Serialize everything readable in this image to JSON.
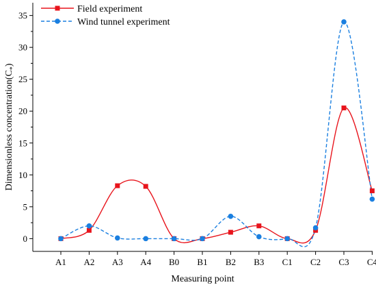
{
  "chart_data": {
    "type": "line",
    "xlabel": "Measuring point",
    "ylabel": "Dimensionless concentration(C*)",
    "ylabel_main": "Dimensionless concentration(C",
    "ylabel_sub": "*",
    "ylabel_close": ")",
    "categories": [
      "A1",
      "A2",
      "A3",
      "A4",
      "B0",
      "B1",
      "B2",
      "B3",
      "C1",
      "C2",
      "C3",
      "C4"
    ],
    "ylim": [
      -2,
      37
    ],
    "yticks": [
      "0",
      "5",
      "10",
      "15",
      "20",
      "25",
      "30",
      "35"
    ],
    "grid": false,
    "legend_position": "top-left",
    "series": [
      {
        "name": "Field experiment",
        "color": "#e8141c",
        "line_style": "solid",
        "marker": "square",
        "values": [
          0,
          1.3,
          8.3,
          8.2,
          0,
          0,
          1.0,
          2.0,
          0,
          1.3,
          20.5,
          7.5
        ]
      },
      {
        "name": "Wind tunnel experiment",
        "color": "#1a7fe0",
        "line_style": "dashed",
        "marker": "circle",
        "values": [
          0,
          2.0,
          0.1,
          0,
          0,
          0,
          3.5,
          0.3,
          0,
          1.7,
          34.0,
          6.2
        ]
      }
    ]
  }
}
